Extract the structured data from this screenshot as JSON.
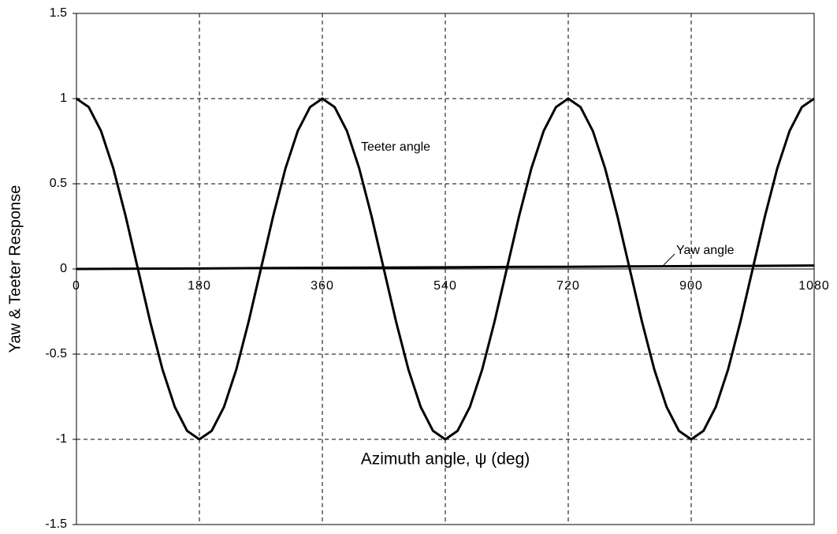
{
  "chart_data": {
    "type": "line",
    "x_label": "Azimuth angle, ψ (deg)",
    "y_label": "Yaw & Teeter Response",
    "xlim": [
      0,
      1080
    ],
    "xticks": [
      0,
      180,
      360,
      540,
      720,
      900,
      1080
    ],
    "ylim": [
      -1.5,
      1.5
    ],
    "yticks": [
      1.5,
      1,
      0.5,
      0,
      -0.5,
      -1,
      -1.5
    ],
    "grid": true,
    "series": [
      {
        "name": "Teeter angle",
        "color": "#000000",
        "x": [
          0,
          18,
          36,
          54,
          72,
          90,
          108,
          126,
          144,
          162,
          180,
          198,
          216,
          234,
          252,
          270,
          288,
          306,
          324,
          342,
          360,
          378,
          396,
          414,
          432,
          450,
          468,
          486,
          504,
          522,
          540,
          558,
          576,
          594,
          612,
          630,
          648,
          666,
          684,
          702,
          720,
          738,
          756,
          774,
          792,
          810,
          828,
          846,
          864,
          882,
          900,
          918,
          936,
          954,
          972,
          990,
          1008,
          1026,
          1044,
          1062,
          1080
        ],
        "values": [
          1,
          0.95,
          0.81,
          0.59,
          0.31,
          0,
          -0.31,
          -0.59,
          -0.81,
          -0.95,
          -1,
          -0.95,
          -0.81,
          -0.59,
          -0.31,
          0,
          0.31,
          0.59,
          0.81,
          0.95,
          1,
          0.95,
          0.81,
          0.59,
          0.31,
          0,
          -0.31,
          -0.59,
          -0.81,
          -0.95,
          -1,
          -0.95,
          -0.81,
          -0.59,
          -0.31,
          0,
          0.31,
          0.59,
          0.81,
          0.95,
          1,
          0.95,
          0.81,
          0.59,
          0.31,
          0,
          -0.31,
          -0.59,
          -0.81,
          -0.95,
          -1,
          -0.95,
          -0.81,
          -0.59,
          -0.31,
          0,
          0.31,
          0.59,
          0.81,
          0.95,
          1
        ]
      },
      {
        "name": "Yaw angle",
        "color": "#000000",
        "x": [
          0,
          90,
          180,
          270,
          360,
          450,
          540,
          630,
          720,
          810,
          900,
          990,
          1080
        ],
        "values": [
          0,
          0.002,
          0.003,
          0.005,
          0.007,
          0.008,
          0.01,
          0.012,
          0.013,
          0.015,
          0.017,
          0.018,
          0.02
        ]
      }
    ]
  }
}
